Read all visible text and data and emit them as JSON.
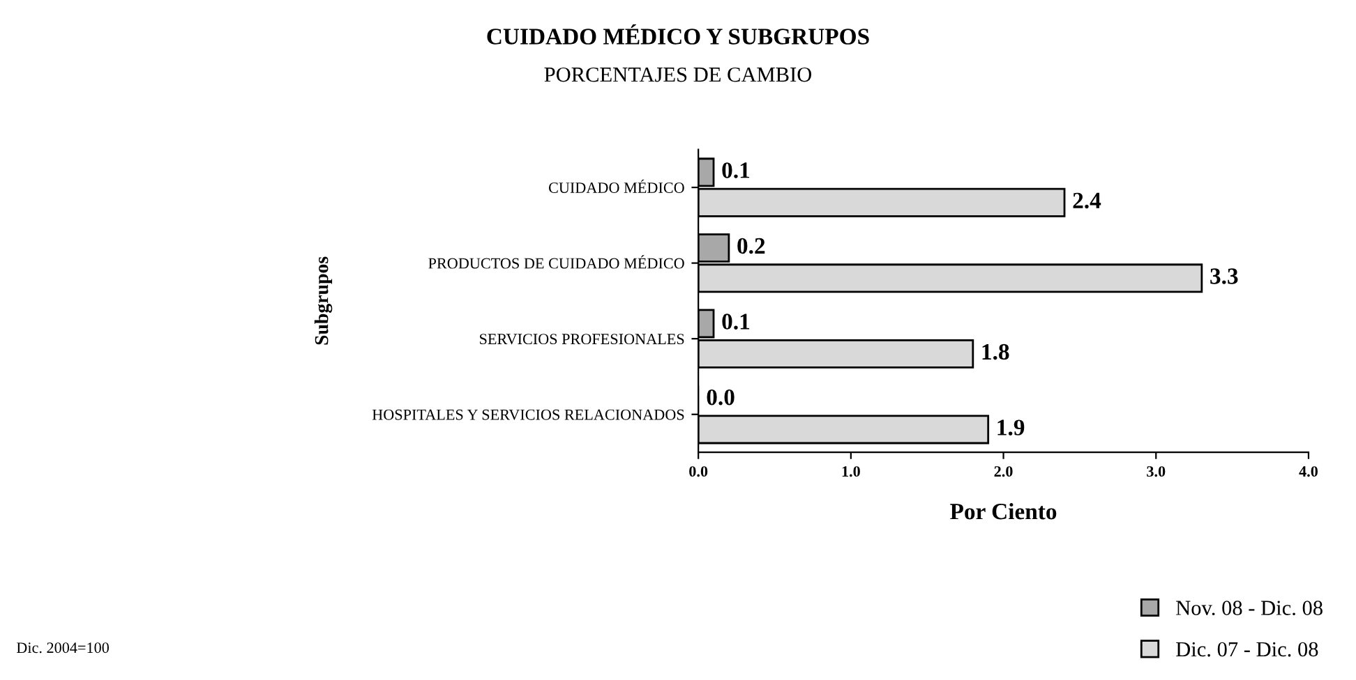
{
  "chart_data": {
    "type": "bar",
    "orientation": "horizontal",
    "title": "CUIDADO MÉDICO Y SUBGRUPOS",
    "subtitle": "PORCENTAJES DE CAMBIO",
    "xlabel": "Por Ciento",
    "ylabel": "Subgrupos",
    "categories": [
      "CUIDADO MÉDICO",
      "PRODUCTOS DE CUIDADO MÉDICO",
      "SERVICIOS PROFESIONALES",
      "HOSPITALES Y SERVICIOS RELACIONADOS"
    ],
    "series": [
      {
        "name": "Nov. 08 - Dic. 08",
        "color": "#a8a8a8",
        "values": [
          0.1,
          0.2,
          0.1,
          0.0
        ],
        "value_labels": [
          "0.1",
          "0.2",
          "0.1",
          "0.0"
        ]
      },
      {
        "name": "Dic. 07 - Dic. 08",
        "color": "#d9d9d9",
        "values": [
          2.4,
          3.3,
          1.8,
          1.9
        ],
        "value_labels": [
          "2.4",
          "3.3",
          "1.8",
          "1.9"
        ]
      }
    ],
    "xlim": [
      0,
      4
    ],
    "xticks": [
      {
        "value": 0,
        "label": "0.0"
      },
      {
        "value": 1,
        "label": "1.0"
      },
      {
        "value": 2,
        "label": "2.0"
      },
      {
        "value": 3,
        "label": "3.0"
      },
      {
        "value": 4,
        "label": "4.0"
      }
    ],
    "grid": false,
    "legend": "bottom right",
    "annotations": [
      "Dic. 2004=100"
    ]
  }
}
